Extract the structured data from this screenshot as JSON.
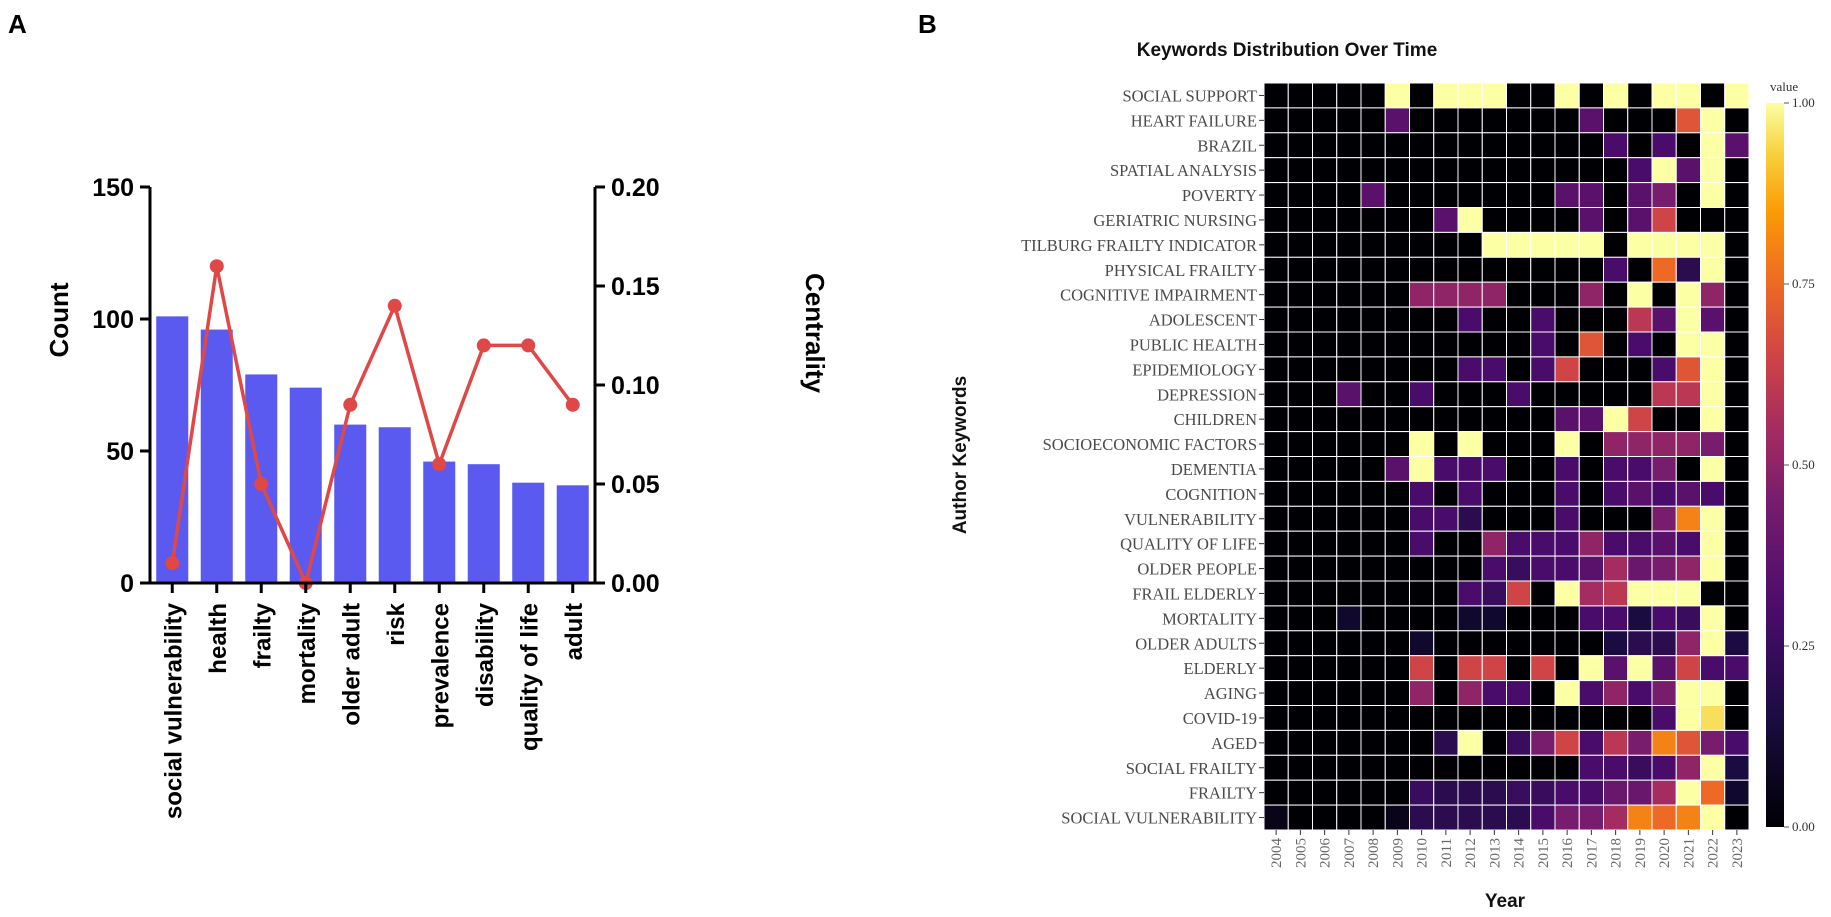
{
  "panels": {
    "a_label": "A",
    "b_label": "B"
  },
  "colors": {
    "bar": "#5A5AF0",
    "line": "#E04848"
  },
  "chart_data": [
    {
      "type": "bar",
      "secondary_type": "line",
      "categories": [
        "social vulnerability",
        "health",
        "frailty",
        "mortality",
        "older adult",
        "risk",
        "prevalence",
        "disability",
        "quality of life",
        "adult"
      ],
      "series": [
        {
          "name": "Count",
          "axis": "left",
          "values": [
            101,
            96,
            79,
            74,
            60,
            59,
            46,
            45,
            38,
            37
          ]
        },
        {
          "name": "Centrality",
          "axis": "right",
          "values": [
            0.01,
            0.16,
            0.05,
            0.0,
            0.09,
            0.14,
            0.06,
            0.12,
            0.12,
            0.09
          ]
        }
      ],
      "ylabel": "Count",
      "ylabel_right": "Centrality",
      "ylim": [
        0,
        150
      ],
      "ylim_right": [
        0,
        0.2
      ],
      "yticks": [
        "0",
        "50",
        "100",
        "150"
      ],
      "yticks_right": [
        "0.00",
        "0.05",
        "0.10",
        "0.15",
        "0.20"
      ]
    },
    {
      "type": "heatmap",
      "title": "Keywords Distribution Over Time",
      "xlabel": "Year",
      "ylabel": "Author Keywords",
      "x": [
        "2004",
        "2005",
        "2006",
        "2007",
        "2008",
        "2009",
        "2010",
        "2011",
        "2012",
        "2013",
        "2014",
        "2015",
        "2016",
        "2017",
        "2018",
        "2019",
        "2020",
        "2021",
        "2022",
        "2023"
      ],
      "y": [
        "SOCIAL SUPPORT",
        "HEART FAILURE",
        "BRAZIL",
        "SPATIAL ANALYSIS",
        "POVERTY",
        "GERIATRIC NURSING",
        "TILBURG FRAILTY INDICATOR",
        "PHYSICAL FRAILTY",
        "COGNITIVE IMPAIRMENT",
        "ADOLESCENT",
        "PUBLIC HEALTH",
        "EPIDEMIOLOGY",
        "DEPRESSION",
        "CHILDREN",
        "SOCIOECONOMIC FACTORS",
        "DEMENTIA",
        "COGNITION",
        "VULNERABILITY",
        "QUALITY OF LIFE",
        "OLDER PEOPLE",
        "FRAIL ELDERLY",
        "MORTALITY",
        "OLDER ADULTS",
        "ELDERLY",
        "AGING",
        "COVID-19",
        "AGED",
        "SOCIAL FRAILTY",
        "FRAILTY",
        "SOCIAL VULNERABILITY"
      ],
      "values": [
        [
          0,
          0,
          0,
          0,
          0,
          1,
          0,
          1,
          1,
          1,
          0,
          0,
          1,
          0,
          1,
          0,
          1,
          1,
          0,
          1
        ],
        [
          0,
          0,
          0,
          0,
          0,
          0.35,
          0,
          0,
          0,
          0,
          0,
          0,
          0,
          0.35,
          0,
          0,
          0,
          0.7,
          1,
          0
        ],
        [
          0,
          0,
          0,
          0,
          0,
          0,
          0,
          0,
          0,
          0,
          0,
          0,
          0,
          0,
          0.3,
          0,
          0.3,
          0,
          1,
          0.35
        ],
        [
          0,
          0,
          0,
          0,
          0,
          0,
          0,
          0,
          0,
          0,
          0,
          0,
          0,
          0,
          0,
          0.3,
          1,
          0.35,
          1,
          0
        ],
        [
          0,
          0,
          0,
          0,
          0.35,
          0,
          0,
          0,
          0,
          0,
          0,
          0,
          0.35,
          0.35,
          0,
          0.35,
          0.45,
          0,
          1,
          0
        ],
        [
          0,
          0,
          0,
          0,
          0,
          0,
          0,
          0.35,
          1,
          0,
          0,
          0,
          0,
          0.35,
          0,
          0.35,
          0.65,
          0,
          0,
          0
        ],
        [
          0,
          0,
          0,
          0,
          0,
          0,
          0,
          0,
          0,
          1,
          1,
          1,
          1,
          1,
          0,
          1,
          1,
          1,
          1,
          0
        ],
        [
          0,
          0,
          0,
          0,
          0,
          0,
          0,
          0,
          0,
          0,
          0,
          0,
          0,
          0,
          0.3,
          0,
          0.75,
          0.2,
          1,
          0
        ],
        [
          0,
          0,
          0,
          0,
          0,
          0,
          0.5,
          0.5,
          0.5,
          0.5,
          0,
          0,
          0,
          0.5,
          0,
          1,
          0,
          1,
          0.5,
          0
        ],
        [
          0,
          0,
          0,
          0,
          0,
          0,
          0,
          0,
          0.3,
          0,
          0,
          0.3,
          0,
          0,
          0,
          0.6,
          0.35,
          1,
          0.35,
          0
        ],
        [
          0,
          0,
          0,
          0,
          0,
          0,
          0,
          0,
          0,
          0,
          0,
          0.3,
          0,
          0.7,
          0,
          0.3,
          0,
          1,
          1,
          0
        ],
        [
          0,
          0,
          0,
          0,
          0,
          0,
          0,
          0,
          0.3,
          0.3,
          0,
          0.3,
          0.65,
          0,
          0,
          0,
          0.3,
          0.7,
          1,
          0
        ],
        [
          0,
          0,
          0,
          0.35,
          0,
          0,
          0.3,
          0,
          0,
          0,
          0.3,
          0,
          0,
          0,
          0,
          0,
          0.6,
          0.6,
          1,
          0
        ],
        [
          0,
          0,
          0,
          0,
          0,
          0,
          0,
          0,
          0,
          0,
          0,
          0,
          0.35,
          0.35,
          1,
          0.65,
          0,
          0,
          1,
          0
        ],
        [
          0,
          0,
          0,
          0,
          0,
          0,
          1,
          0,
          1,
          0,
          0,
          0,
          1,
          0,
          0.5,
          0.5,
          0.5,
          0.5,
          0.45,
          0
        ],
        [
          0,
          0,
          0,
          0,
          0,
          0.35,
          1,
          0.3,
          0.3,
          0.3,
          0,
          0,
          0.3,
          0,
          0.3,
          0.3,
          0.45,
          0,
          1,
          0
        ],
        [
          0,
          0,
          0,
          0,
          0,
          0,
          0.3,
          0,
          0.3,
          0,
          0,
          0,
          0.3,
          0,
          0.3,
          0.35,
          0.3,
          0.35,
          0.3,
          0
        ],
        [
          0,
          0,
          0,
          0,
          0,
          0,
          0.3,
          0.3,
          0.2,
          0,
          0,
          0,
          0.3,
          0,
          0,
          0,
          0.45,
          0.8,
          1,
          0
        ],
        [
          0,
          0,
          0,
          0,
          0,
          0,
          0.3,
          0,
          0,
          0.5,
          0.3,
          0.3,
          0.3,
          0.5,
          0.3,
          0.3,
          0.35,
          0.3,
          1,
          0
        ],
        [
          0,
          0,
          0,
          0,
          0,
          0,
          0,
          0,
          0,
          0.3,
          0.25,
          0.3,
          0.3,
          0.35,
          0.55,
          0.4,
          0.45,
          0.5,
          1,
          0
        ],
        [
          0,
          0,
          0,
          0,
          0,
          0,
          0,
          0,
          0.3,
          0.25,
          0.65,
          0,
          1,
          0.55,
          0.6,
          1,
          1,
          1,
          0,
          0
        ],
        [
          0,
          0,
          0,
          0.1,
          0,
          0,
          0,
          0,
          0.1,
          0.1,
          0,
          0,
          0,
          0.3,
          0.3,
          0.15,
          0.3,
          0.25,
          1,
          0
        ],
        [
          0,
          0,
          0,
          0,
          0,
          0,
          0.1,
          0,
          0,
          0,
          0,
          0,
          0,
          0,
          0.15,
          0.2,
          0.2,
          0.5,
          1,
          0.15
        ],
        [
          0,
          0,
          0,
          0,
          0,
          0,
          0.65,
          0,
          0.65,
          0.65,
          0,
          0.65,
          0,
          1,
          0.35,
          1,
          0.35,
          0.65,
          0.3,
          0.3
        ],
        [
          0,
          0,
          0,
          0,
          0,
          0,
          0.5,
          0,
          0.5,
          0.3,
          0.3,
          0,
          1,
          0.3,
          0.5,
          0.3,
          0.45,
          1,
          1,
          0
        ],
        [
          0,
          0,
          0,
          0,
          0,
          0,
          0,
          0,
          0,
          0,
          0,
          0,
          0,
          0,
          0,
          0,
          0.3,
          1,
          0.95,
          0
        ],
        [
          0,
          0,
          0,
          0,
          0,
          0,
          0,
          0.2,
          1,
          0,
          0.25,
          0.45,
          0.65,
          0.3,
          0.6,
          0.45,
          0.8,
          0.7,
          0.45,
          0.3
        ],
        [
          0,
          0,
          0,
          0,
          0,
          0,
          0,
          0,
          0,
          0,
          0,
          0,
          0,
          0.3,
          0.3,
          0.25,
          0.3,
          0.5,
          1,
          0.15
        ],
        [
          0,
          0,
          0,
          0,
          0,
          0,
          0.25,
          0.2,
          0.2,
          0.2,
          0.25,
          0.25,
          0.3,
          0.3,
          0.4,
          0.4,
          0.55,
          1,
          0.75,
          0.1
        ],
        [
          0.05,
          0,
          0,
          0,
          0,
          0.05,
          0.2,
          0.2,
          0.2,
          0.2,
          0.2,
          0.3,
          0.45,
          0.45,
          0.55,
          0.8,
          0.75,
          0.8,
          1,
          0
        ]
      ],
      "legend": {
        "title": "value",
        "ticks": [
          "0.00",
          "0.25",
          "0.50",
          "0.75",
          "1.00"
        ],
        "range": [
          0,
          1
        ]
      }
    }
  ]
}
